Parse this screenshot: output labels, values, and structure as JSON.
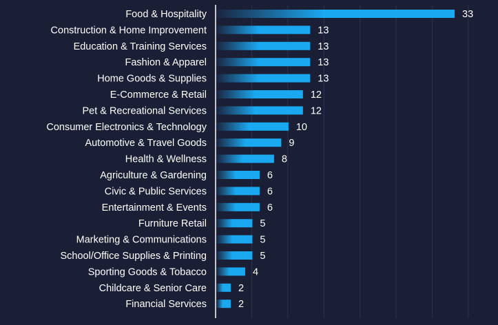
{
  "chart_data": {
    "type": "bar",
    "orientation": "horizontal",
    "categories": [
      "Food & Hospitality",
      "Construction & Home Improvement",
      "Education & Training Services",
      "Fashion & Apparel",
      "Home Goods & Supplies",
      "E-Commerce & Retail",
      "Pet & Recreational Services",
      "Consumer Electronics & Technology",
      "Automotive & Travel Goods",
      "Health & Wellness",
      "Agriculture & Gardening",
      "Civic & Public Services",
      "Entertainment & Events",
      "Furniture Retail",
      "Marketing & Communications",
      "School/Office Supplies & Printing",
      "Sporting Goods & Tobacco",
      "Childcare & Senior Care",
      "Financial Services"
    ],
    "values": [
      33,
      13,
      13,
      13,
      13,
      12,
      12,
      10,
      9,
      8,
      6,
      6,
      6,
      5,
      5,
      5,
      4,
      2,
      2
    ],
    "xlim": [
      0,
      35
    ],
    "grid": true,
    "legend": "none",
    "colors": {
      "background": "#1a1f35",
      "bar": "#1aa8f0",
      "bar_fade": "#1a2540",
      "text": "#ffffff",
      "grid": "#2c3452",
      "axis": "#ffffff"
    }
  }
}
